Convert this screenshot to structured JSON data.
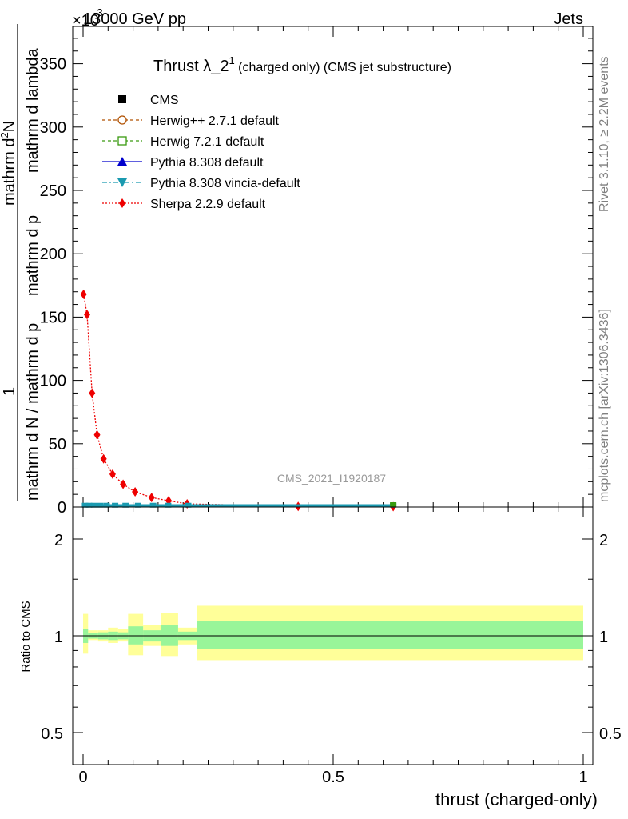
{
  "header": {
    "left": "13000 GeV pp",
    "right": "Jets",
    "exponent_prefix": "×10",
    "exponent": "-3"
  },
  "side_labels": {
    "rivet": "Rivet 3.1.10, ≥ 2.2M events",
    "mcplots": "mcplots.cern.ch [arXiv:1306.3436]"
  },
  "watermark": "CMS_2021_I1920187",
  "title": {
    "main": "Thrust λ_2",
    "superscript": "1",
    "suffix": " (charged only) (CMS jet substructure)"
  },
  "y_axis_top": {
    "line1": "mathrm d N / mathrm d p_T mathrm d p_T mathrm d lambda",
    "numerator_one": "1",
    "numerator": "mathrm d",
    "numerator_sup": "2",
    "numerator_N": "N",
    "denominator": "mathrm d N / mathrm d p",
    "denominator_mid": "mathrm d p",
    "denominator_end": "mathrm d lambda"
  },
  "y_axis_bottom": {
    "label": "Ratio to CMS"
  },
  "x_axis": {
    "label": "thrust (charged-only)"
  },
  "legend": [
    {
      "label": "CMS",
      "color": "#000000",
      "marker": "square-filled",
      "line": "none"
    },
    {
      "label": "Herwig++ 2.7.1 default",
      "color": "#b05000",
      "marker": "circle-open",
      "line": "dashed"
    },
    {
      "label": "Herwig 7.2.1 default",
      "color": "#3a9a10",
      "marker": "square-open",
      "line": "dashed"
    },
    {
      "label": "Pythia 8.308 default",
      "color": "#0000cc",
      "marker": "triangle-up",
      "line": "solid"
    },
    {
      "label": "Pythia 8.308 vincia-default",
      "color": "#1a9ab0",
      "marker": "triangle-down",
      "line": "dashdot"
    },
    {
      "label": "Sherpa 2.2.9 default",
      "color": "#ee0000",
      "marker": "diamond",
      "line": "dotted"
    }
  ],
  "chart_data": [
    {
      "type": "line",
      "title": "Thrust λ_2^1 (charged only) (CMS jet substructure)",
      "xlabel": "thrust (charged-only)",
      "ylabel": "1 / N dN/dλ (×10^-3)",
      "xlim": [
        0,
        1
      ],
      "ylim": [
        0,
        380
      ],
      "x_ticks": [
        0,
        0.5,
        1
      ],
      "y_ticks": [
        0,
        50,
        100,
        150,
        200,
        250,
        300,
        350
      ],
      "series": [
        {
          "name": "Sherpa 2.2.9 default",
          "x": [
            0.001,
            0.008,
            0.018,
            0.028,
            0.041,
            0.059,
            0.08,
            0.104,
            0.137,
            0.171,
            0.208,
            0.43,
            0.62
          ],
          "y": [
            168,
            152,
            90,
            57,
            38,
            26,
            18,
            12,
            7.5,
            5,
            2.5,
            0.5,
            0.3
          ]
        },
        {
          "name": "CMS",
          "x": [
            0.004,
            0.012,
            0.022,
            0.034,
            0.047,
            0.064,
            0.085,
            0.11,
            0.14,
            0.17,
            0.21,
            0.62
          ],
          "y": [
            0.8,
            0.8,
            0.8,
            0.8,
            0.8,
            0.8,
            0.8,
            0.8,
            0.8,
            0.8,
            0.8,
            0.8
          ]
        }
      ]
    },
    {
      "type": "area",
      "ylabel": "Ratio to CMS",
      "xlim": [
        0,
        1
      ],
      "ylim": [
        0.4,
        2.3
      ],
      "log_scale_y": true,
      "y_ticks": [
        0.5,
        1,
        2
      ],
      "reference_line": 1,
      "bins": [
        {
          "x0": 0.0,
          "x1": 0.01,
          "inner": [
            0.95,
            1.05
          ],
          "outer": [
            0.88,
            1.17
          ]
        },
        {
          "x0": 0.01,
          "x1": 0.03,
          "inner": [
            0.98,
            1.02
          ],
          "outer": [
            0.97,
            1.04
          ]
        },
        {
          "x0": 0.03,
          "x1": 0.05,
          "inner": [
            0.975,
            1.025
          ],
          "outer": [
            0.96,
            1.04
          ]
        },
        {
          "x0": 0.05,
          "x1": 0.07,
          "inner": [
            0.97,
            1.03
          ],
          "outer": [
            0.95,
            1.06
          ]
        },
        {
          "x0": 0.07,
          "x1": 0.09,
          "inner": [
            0.975,
            1.025
          ],
          "outer": [
            0.96,
            1.05
          ]
        },
        {
          "x0": 0.09,
          "x1": 0.12,
          "inner": [
            0.94,
            1.07
          ],
          "outer": [
            0.87,
            1.17
          ]
        },
        {
          "x0": 0.12,
          "x1": 0.155,
          "inner": [
            0.96,
            1.04
          ],
          "outer": [
            0.93,
            1.08
          ]
        },
        {
          "x0": 0.155,
          "x1": 0.19,
          "inner": [
            0.93,
            1.08
          ],
          "outer": [
            0.865,
            1.175
          ]
        },
        {
          "x0": 0.19,
          "x1": 0.228,
          "inner": [
            0.97,
            1.03
          ],
          "outer": [
            0.94,
            1.06
          ]
        },
        {
          "x0": 0.228,
          "x1": 1.0,
          "inner": [
            0.91,
            1.11
          ],
          "outer": [
            0.84,
            1.24
          ]
        }
      ]
    }
  ]
}
